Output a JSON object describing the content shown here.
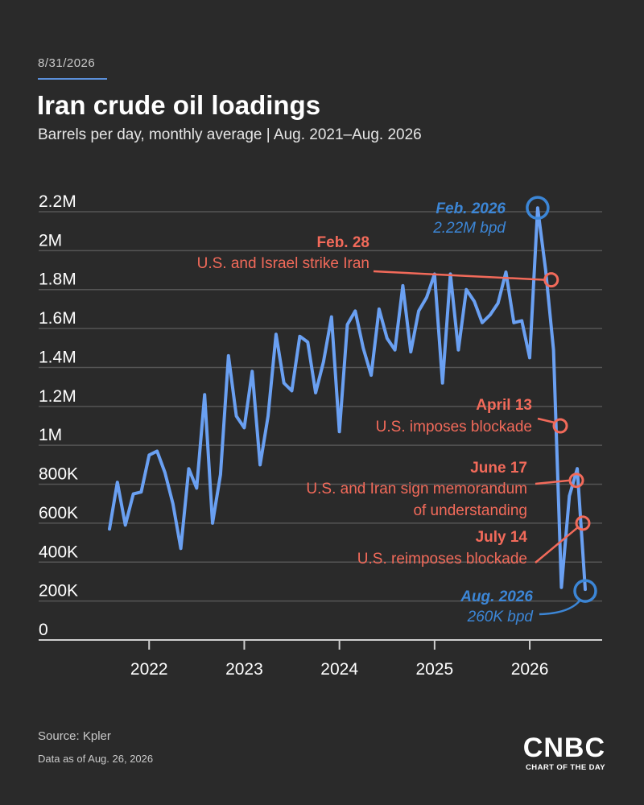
{
  "header": {
    "date": "8/31/2026",
    "title": "Iran crude oil loadings",
    "subtitle": "Barrels per day, monthly average | Aug. 2021–Aug. 2026"
  },
  "footer": {
    "source": "Source: Kpler",
    "as_of": "Data as of Aug. 26, 2026",
    "brand": "CNBC",
    "brand_sub": "CHART OF THE DAY"
  },
  "colors": {
    "background": "#2a2a2a",
    "line": "#6aa0f2",
    "highlight": "#3c86d6",
    "event": "#f26a5a",
    "grid": "#555555"
  },
  "chart_data": {
    "type": "line",
    "title": "Iran crude oil loadings",
    "ylabel": "",
    "xlabel": "",
    "ylim": [
      0,
      2200000
    ],
    "yticks": [
      0,
      200000,
      400000,
      600000,
      800000,
      1000000,
      1200000,
      1400000,
      1600000,
      1800000,
      2000000,
      2200000
    ],
    "ytick_labels": [
      "0",
      "200K",
      "400K",
      "600K",
      "800K",
      "1M",
      "1.2M",
      "1.4M",
      "1.6M",
      "1.8M",
      "2M",
      "2.2M"
    ],
    "xtick_labels": [
      "2022",
      "2023",
      "2024",
      "2025",
      "2026"
    ],
    "xticks": [
      "2022-01",
      "2023-01",
      "2024-01",
      "2025-01",
      "2026-01"
    ],
    "grid": true,
    "series": [
      {
        "x": [
          "2021-08",
          "2021-09",
          "2021-10",
          "2021-11",
          "2021-12",
          "2022-01",
          "2022-02",
          "2022-03",
          "2022-04",
          "2022-05",
          "2022-06",
          "2022-07",
          "2022-08",
          "2022-09",
          "2022-10",
          "2022-11",
          "2022-12",
          "2023-01",
          "2023-02",
          "2023-03",
          "2023-04",
          "2023-05",
          "2023-06",
          "2023-07",
          "2023-08",
          "2023-09",
          "2023-10",
          "2023-11",
          "2023-12",
          "2024-01",
          "2024-02",
          "2024-03",
          "2024-04",
          "2024-05",
          "2024-06",
          "2024-07",
          "2024-08",
          "2024-09",
          "2024-10",
          "2024-11",
          "2024-12",
          "2025-01",
          "2025-02",
          "2025-03",
          "2025-04",
          "2025-05",
          "2025-06",
          "2025-07",
          "2025-08",
          "2025-09",
          "2025-10",
          "2025-11",
          "2025-12",
          "2026-01",
          "2026-02",
          "2026-03",
          "2026-04",
          "2026-05",
          "2026-06",
          "2026-07",
          "2026-08"
        ],
        "values": [
          570000,
          810000,
          590000,
          750000,
          760000,
          950000,
          970000,
          860000,
          700000,
          470000,
          880000,
          780000,
          1260000,
          600000,
          850000,
          1460000,
          1150000,
          1090000,
          1380000,
          900000,
          1150000,
          1570000,
          1320000,
          1280000,
          1560000,
          1530000,
          1270000,
          1430000,
          1660000,
          1070000,
          1620000,
          1690000,
          1500000,
          1360000,
          1700000,
          1550000,
          1490000,
          1820000,
          1480000,
          1690000,
          1760000,
          1880000,
          1320000,
          1880000,
          1490000,
          1800000,
          1740000,
          1630000,
          1670000,
          1730000,
          1890000,
          1630000,
          1640000,
          1450000,
          2220000,
          1900000,
          1490000,
          270000,
          740000,
          880000,
          260000
        ]
      }
    ],
    "annotations": [
      {
        "date": "2026-02",
        "value": 2220000,
        "kind": "highlight",
        "title": "Feb. 2026",
        "text": "2.22M bpd"
      },
      {
        "date": "2026-02-28",
        "value": 1850000,
        "kind": "event",
        "title": "Feb. 28",
        "text": "U.S. and Israel strike Iran"
      },
      {
        "date": "2026-04-13",
        "value": 1100000,
        "kind": "event",
        "title": "April 13",
        "text": "U.S. imposes blockade"
      },
      {
        "date": "2026-06-17",
        "value": 820000,
        "kind": "event",
        "title": "June 17",
        "text": "U.S. and Iran sign memorandum",
        "text2": "of understanding"
      },
      {
        "date": "2026-07-14",
        "value": 600000,
        "kind": "event",
        "title": "July 14",
        "text": "U.S. reimposes blockade"
      },
      {
        "date": "2026-08",
        "value": 260000,
        "kind": "highlight",
        "title": "Aug. 2026",
        "text": "260K bpd"
      }
    ]
  }
}
